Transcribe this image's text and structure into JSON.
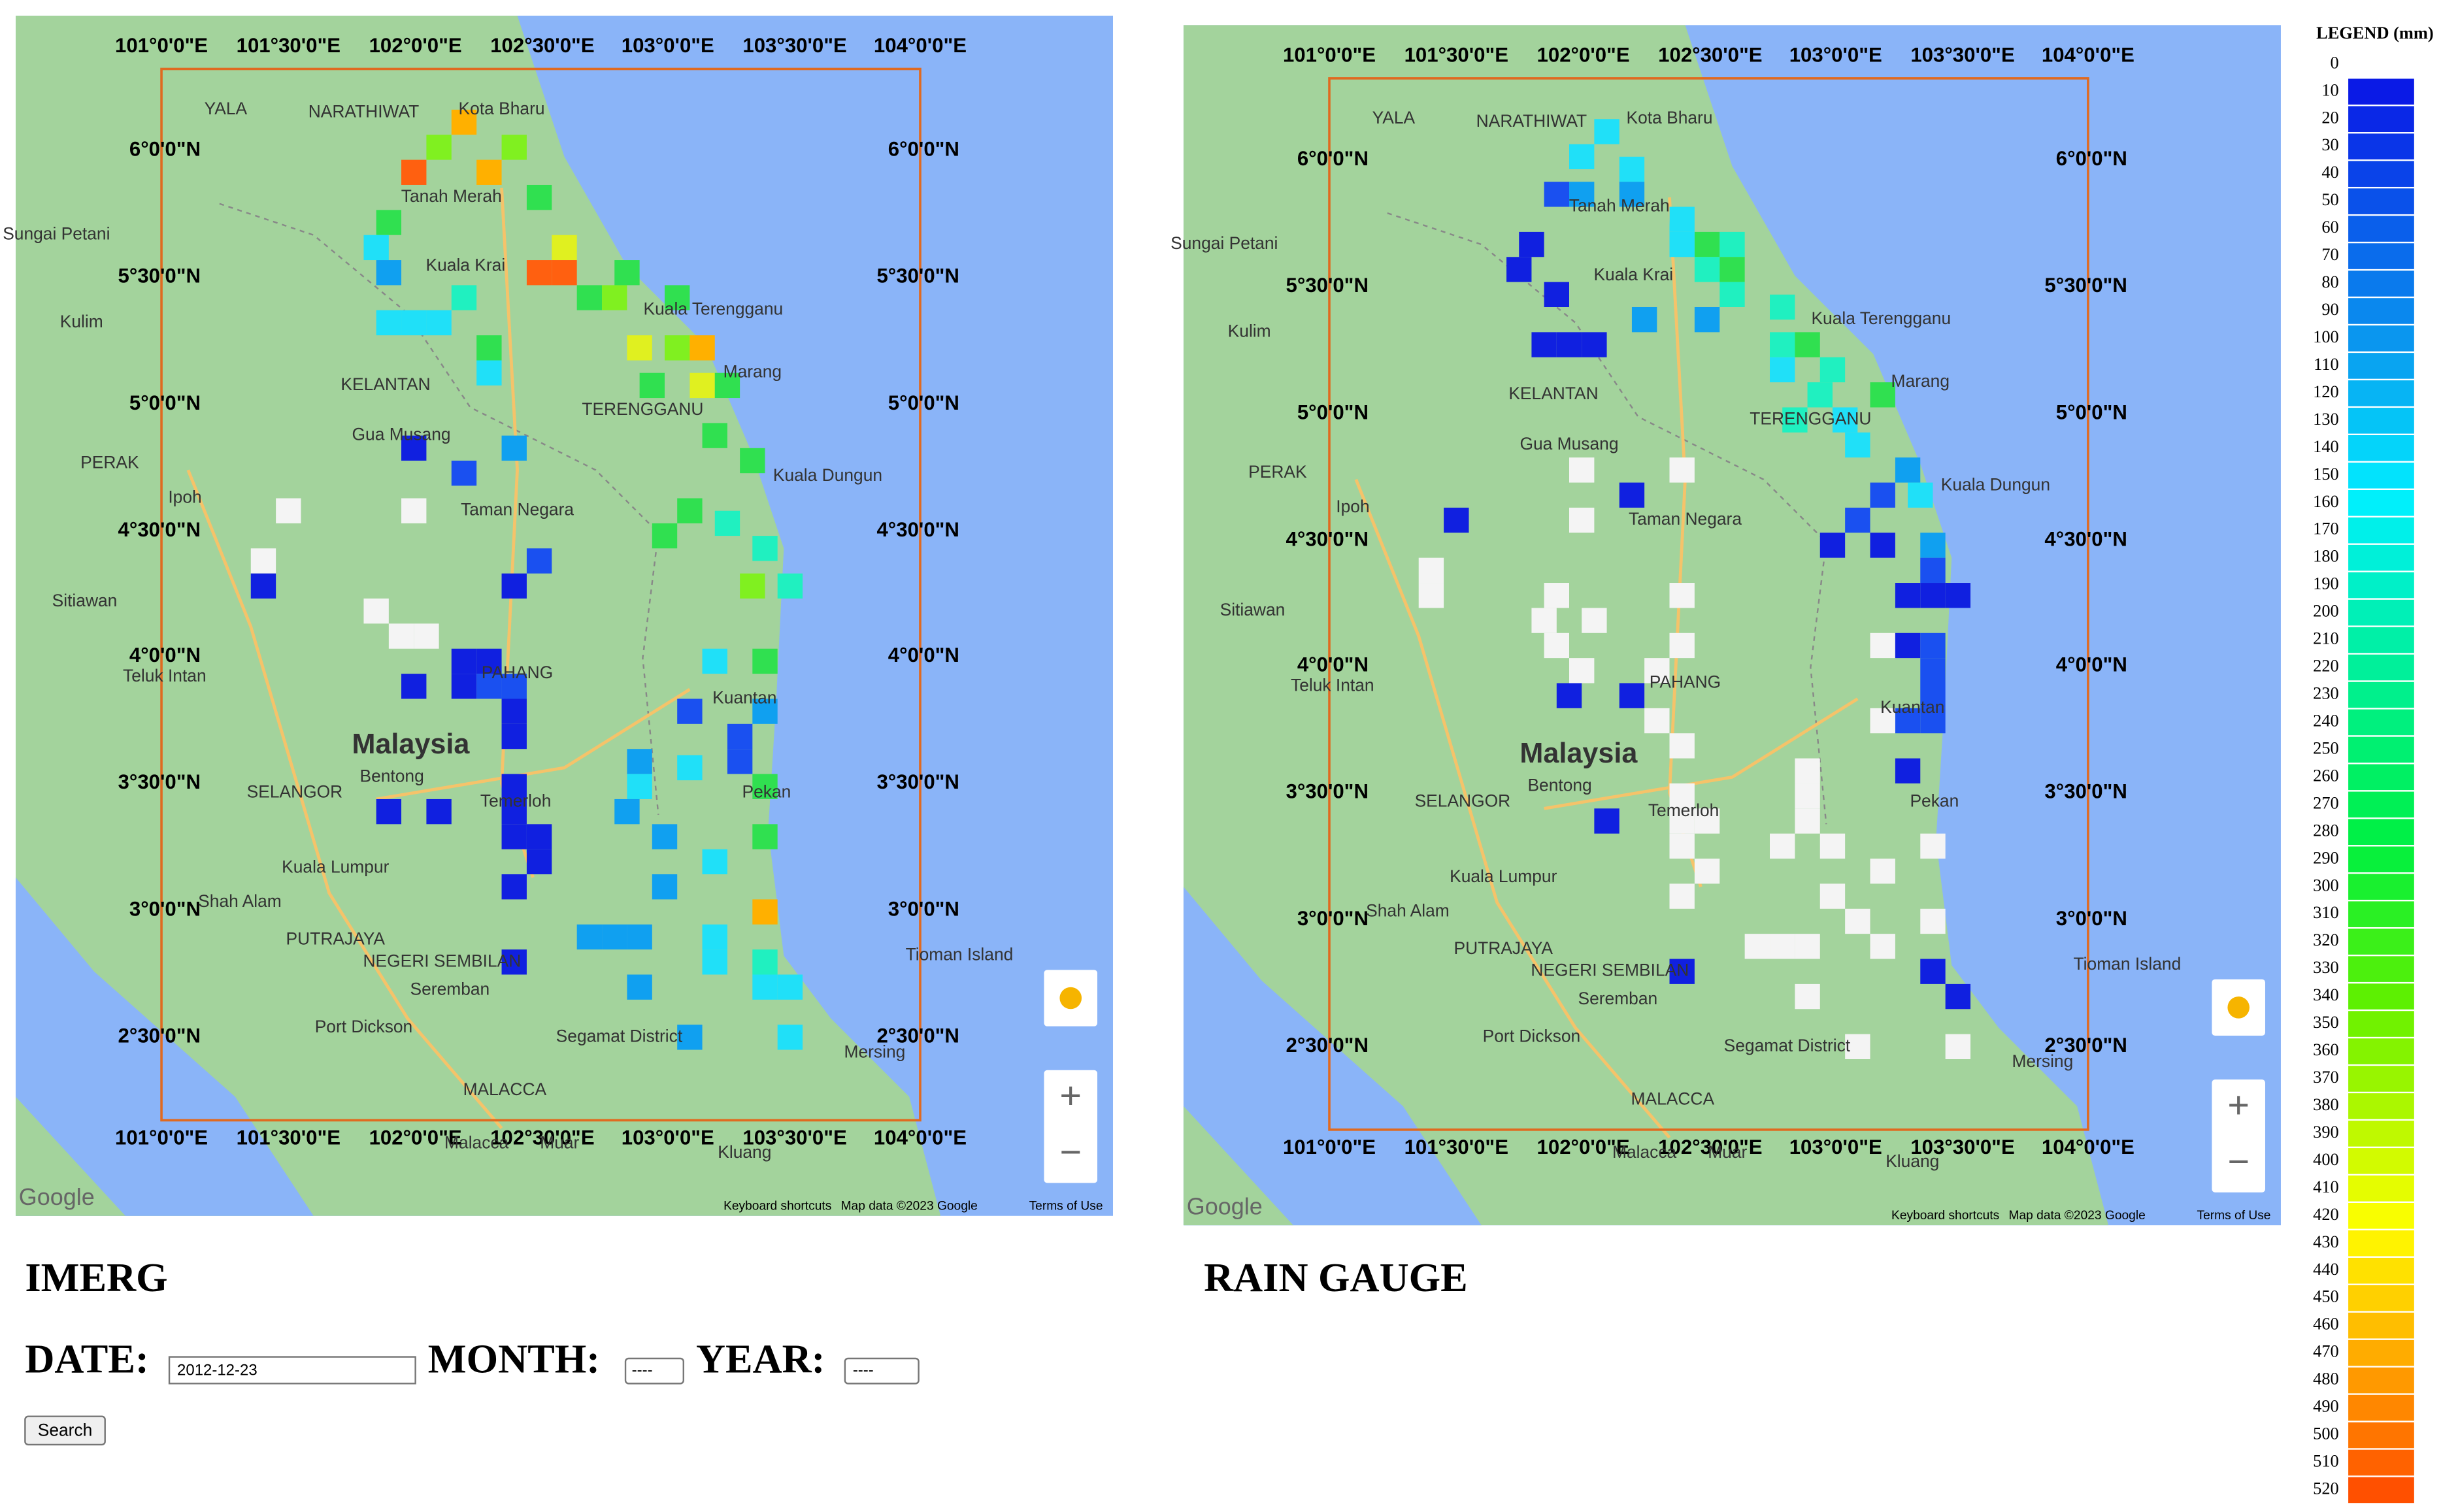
{
  "panels": [
    {
      "title": "IMERG"
    },
    {
      "title": "RAIN GAUGE"
    }
  ],
  "map": {
    "lon_labels": [
      "101°0'0\"E",
      "101°30'0\"E",
      "102°0'0\"E",
      "102°30'0\"E",
      "103°0'0\"E",
      "103°30'0\"E",
      "104°0'0\"E"
    ],
    "lat_labels": [
      "6°0'0\"N",
      "5°30'0\"N",
      "5°0'0\"N",
      "4°30'0\"N",
      "4°0'0\"N",
      "3°30'0\"N",
      "3°0'0\"N",
      "2°30'0\"N"
    ],
    "places": [
      "Kota Bharu",
      "Tanah Merah",
      "Kuala Krai",
      "KELANTAN",
      "Kuala Terengganu",
      "TERENGGANU",
      "Marang",
      "Gua Musang",
      "Taman Negara",
      "Kuala Dungun",
      "Ipoh",
      "PERAK",
      "PAHANG",
      "Kuantan",
      "Malaysia",
      "SELANGOR",
      "Kuala Lumpur",
      "Shah Alam",
      "PUTRAJAYA",
      "NEGERI SEMBILAN",
      "Seremban",
      "Port Dickson",
      "MALACCA",
      "Malacca",
      "Muar",
      "Kluang",
      "Pekan",
      "Temerloh",
      "Bentong",
      "Tioman Island",
      "Mersing",
      "Segamat District",
      "YALA",
      "NARATHIWAT",
      "Teluk Intan",
      "Sitiawan",
      "Kulim",
      "Sungai Petani"
    ],
    "attribution": [
      "Keyboard shortcuts",
      "Map data ©2023 Google",
      "Terms of Use"
    ],
    "logo": "Google",
    "zoom_in": "+",
    "zoom_out": "−"
  },
  "form": {
    "date_label": "DATE:",
    "date_value": "2012-12-23",
    "month_label": "MONTH:",
    "month_value": "----",
    "year_label": "YEAR:",
    "year_value": "----",
    "button": "Search"
  },
  "legend": {
    "title": "LEGEND (mm)",
    "levels": [
      0,
      10,
      20,
      30,
      40,
      50,
      60,
      70,
      80,
      90,
      100,
      110,
      120,
      130,
      140,
      150,
      160,
      170,
      180,
      190,
      200,
      210,
      220,
      230,
      240,
      250,
      260,
      270,
      280,
      290,
      300,
      310,
      320,
      330,
      340,
      350,
      360,
      370,
      380,
      390,
      400,
      410,
      420,
      430,
      440,
      450,
      460,
      470,
      480,
      490,
      500,
      510,
      520
    ]
  }
}
